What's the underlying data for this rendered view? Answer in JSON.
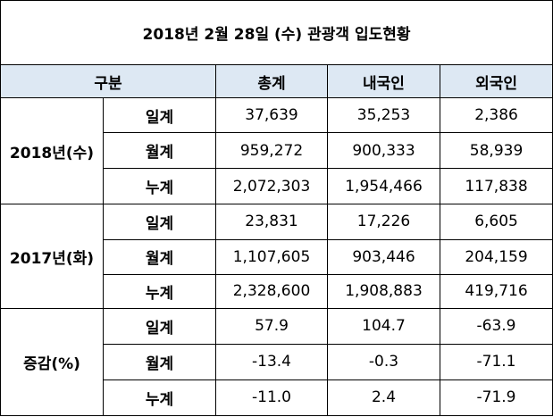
{
  "title": "2018년 2월 28일 (수) 관광객 입도현황",
  "header": {
    "category": "구분",
    "col_total": "총계",
    "col_domestic": "내국인",
    "col_foreign": "외국인"
  },
  "groups": [
    {
      "label": "2018년(수)",
      "rows": [
        {
          "label": "일계",
          "total": "37,639",
          "domestic": "35,253",
          "foreign": "2,386"
        },
        {
          "label": "월계",
          "total": "959,272",
          "domestic": "900,333",
          "foreign": "58,939"
        },
        {
          "label": "누계",
          "total": "2,072,303",
          "domestic": "1,954,466",
          "foreign": "117,838"
        }
      ]
    },
    {
      "label": "2017년(화)",
      "rows": [
        {
          "label": "일계",
          "total": "23,831",
          "domestic": "17,226",
          "foreign": "6,605"
        },
        {
          "label": "월계",
          "total": "1,107,605",
          "domestic": "903,446",
          "foreign": "204,159"
        },
        {
          "label": "누계",
          "total": "2,328,600",
          "domestic": "1,908,883",
          "foreign": "419,716"
        }
      ]
    },
    {
      "label": "증감(%)",
      "rows": [
        {
          "label": "일계",
          "total": "57.9",
          "domestic": "104.7",
          "foreign": "-63.9"
        },
        {
          "label": "월계",
          "total": "-13.4",
          "domestic": "-0.3",
          "foreign": "-71.1"
        },
        {
          "label": "누계",
          "total": "-11.0",
          "domestic": "2.4",
          "foreign": "-71.9"
        }
      ]
    }
  ],
  "colors": {
    "header_bg": "#dde8f3",
    "border": "#000000"
  }
}
